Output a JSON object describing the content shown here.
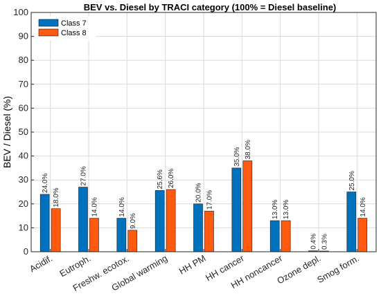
{
  "chart_data": {
    "type": "bar",
    "title": "BEV vs. Diesel by TRACI category (100% = Diesel baseline)",
    "xlabel": "",
    "ylabel": "BEV / Diesel (%)",
    "ylim": [
      0,
      100
    ],
    "yticks": [
      0,
      10,
      20,
      30,
      40,
      50,
      60,
      70,
      80,
      90,
      100
    ],
    "grid": true,
    "legend_position": "top-left",
    "categories": [
      "Acidif.",
      "Eutroph.",
      "Freshw. ecotox.",
      "Global warming",
      "HH PM",
      "HH cancer",
      "HH noncancer",
      "Ozone depl.",
      "Smog form."
    ],
    "series": [
      {
        "name": "Class 7",
        "color": "#0072BD",
        "values": [
          24.0,
          27.0,
          14.0,
          25.6,
          20.0,
          35.0,
          13.0,
          0.4,
          25.0
        ],
        "labels": [
          "24.0%",
          "27.0%",
          "14.0%",
          "25.6%",
          "20.0%",
          "35.0%",
          "13.0%",
          "0.4%",
          "25.0%"
        ]
      },
      {
        "name": "Class 8",
        "color": "#FF5A0F",
        "values": [
          18.0,
          14.0,
          9.0,
          26.0,
          17.0,
          38.0,
          13.0,
          0.3,
          14.0
        ],
        "labels": [
          "18.0%",
          "14.0%",
          "9.0%",
          "26.0%",
          "17.0%",
          "38.0%",
          "13.0%",
          "0.3%",
          "14.0%"
        ]
      }
    ]
  }
}
